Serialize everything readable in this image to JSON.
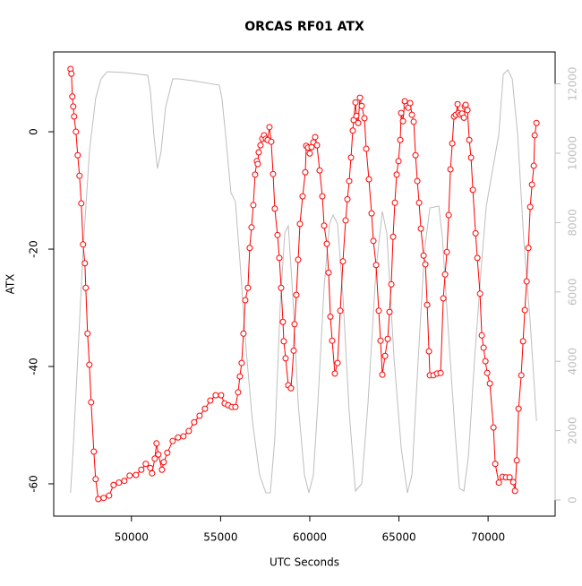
{
  "chart_data": {
    "type": "line",
    "title": "ORCAS RF01 ATX",
    "x_label": "UTC Seconds",
    "y_label": "ATX",
    "xlim": [
      45640,
      73760
    ],
    "ylim": [
      -65.5,
      13.6
    ],
    "y2lim": [
      -465,
      12920
    ],
    "xticks": [
      50000,
      55000,
      60000,
      65000,
      70000
    ],
    "yticks": [
      -60,
      -40,
      -20,
      0
    ],
    "y2ticks": [
      0,
      2000,
      4000,
      6000,
      8000,
      10000,
      12000
    ],
    "y2_color": "#bebebe",
    "series": [
      {
        "color": "#ff0000",
        "style": "points-lines",
        "axis": "y",
        "x": [
          46583,
          46633,
          46683,
          46734,
          46784,
          46884,
          46985,
          47086,
          47186,
          47286,
          47387,
          47437,
          47538,
          47638,
          47739,
          47890,
          47990,
          48141,
          48442,
          48744,
          48995,
          49296,
          49598,
          49899,
          50251,
          50553,
          50804,
          51055,
          51156,
          51307,
          51407,
          51508,
          51709,
          51809,
          52010,
          52312,
          52613,
          52915,
          53216,
          53518,
          53819,
          54121,
          54422,
          54724,
          55025,
          55226,
          55427,
          55628,
          55829,
          55980,
          56080,
          56181,
          56281,
          56382,
          56533,
          56633,
          56734,
          56834,
          56935,
          57035,
          57086,
          57136,
          57236,
          57337,
          57437,
          57538,
          57638,
          57739,
          57839,
          57940,
          58040,
          58191,
          58292,
          58392,
          58493,
          58543,
          58643,
          58794,
          58945,
          59096,
          59146,
          59246,
          59347,
          59447,
          59598,
          59749,
          59799,
          59900,
          60000,
          60101,
          60201,
          60302,
          60402,
          60553,
          60704,
          60804,
          60955,
          61055,
          61156,
          61256,
          61407,
          61558,
          61709,
          61859,
          62010,
          62111,
          62211,
          62312,
          62412,
          62462,
          62563,
          62613,
          62714,
          62814,
          62915,
          63065,
          63166,
          63317,
          63467,
          63568,
          63719,
          63869,
          63970,
          64070,
          64221,
          64372,
          64472,
          64573,
          64673,
          64774,
          64874,
          64975,
          65075,
          65126,
          65226,
          65327,
          65427,
          65528,
          65628,
          65729,
          65829,
          65930,
          66030,
          66131,
          66231,
          66382,
          66482,
          66583,
          66683,
          66734,
          66935,
          67136,
          67337,
          67487,
          67588,
          67688,
          67789,
          67889,
          67990,
          68090,
          68191,
          68291,
          68342,
          68442,
          68543,
          68643,
          68693,
          68744,
          68844,
          68945,
          69045,
          69146,
          69297,
          69397,
          69548,
          69648,
          69749,
          69849,
          69950,
          70101,
          70302,
          70402,
          70603,
          70804,
          71005,
          71206,
          71407,
          71508,
          71608,
          71709,
          71859,
          71960,
          72060,
          72161,
          72261,
          72362,
          72462,
          72563,
          72613,
          72714
        ],
        "values": [
          10.7,
          9.9,
          6.0,
          4.3,
          2.6,
          0,
          -4.0,
          -7.5,
          -12.2,
          -19.2,
          -22.4,
          -26.6,
          -34.4,
          -39.7,
          -46.1,
          -54.5,
          -59.2,
          -62.6,
          -62.4,
          -62.0,
          -60.2,
          -59.8,
          -59.5,
          -58.6,
          -58.5,
          -57.6,
          -56.6,
          -57.3,
          -58.2,
          -55.7,
          -53.1,
          -55.0,
          -57.6,
          -56.3,
          -54.7,
          -52.7,
          -52.1,
          -51.9,
          -51.0,
          -49.5,
          -48.4,
          -47.2,
          -45.8,
          -44.9,
          -44.9,
          -46.3,
          -46.6,
          -46.9,
          -46.9,
          -44.4,
          -41.7,
          -39.4,
          -34.4,
          -28.7,
          -26.6,
          -19.8,
          -16.3,
          -12.5,
          -7.3,
          -5.0,
          -5.5,
          -3.5,
          -2.3,
          -1.2,
          -0.6,
          -1.2,
          -1.4,
          0.8,
          -1.7,
          -7.2,
          -13.1,
          -17.6,
          -21.5,
          -26.6,
          -32.4,
          -35.7,
          -38.6,
          -43.2,
          -43.7,
          -37.3,
          -32.8,
          -27.8,
          -21.8,
          -15.7,
          -11.0,
          -6.9,
          -2.4,
          -2.7,
          -3.7,
          -2.6,
          -1.8,
          -0.9,
          -2.3,
          -6.6,
          -11.0,
          -16.0,
          -19.1,
          -24.0,
          -31.5,
          -35.6,
          -41.2,
          -39.4,
          -30.5,
          -22.1,
          -15.1,
          -11.5,
          -8.4,
          -4.4,
          0.2,
          2.0,
          5.0,
          2.7,
          1.5,
          5.8,
          4.4,
          2.3,
          -2.9,
          -8.1,
          -13.9,
          -18.6,
          -22.7,
          -30.5,
          -35.6,
          -41.4,
          -38.2,
          -35.3,
          -30.7,
          -26.0,
          -17.9,
          -12.1,
          -7.3,
          -5.0,
          -1.4,
          3.2,
          1.8,
          5.2,
          4.4,
          4.1,
          4.9,
          2.9,
          1.7,
          -4.0,
          -8.4,
          -12.1,
          -16.5,
          -21.1,
          -22.6,
          -29.5,
          -37.4,
          -41.5,
          -41.5,
          -41.2,
          -41.1,
          -28.4,
          -24.3,
          -20.5,
          -14.2,
          -6.4,
          -2.0,
          2.6,
          2.9,
          4.7,
          3.2,
          2.9,
          3.1,
          2.4,
          4.3,
          4.6,
          3.7,
          -1.4,
          -4.4,
          -9.9,
          -17.3,
          -21.5,
          -27.6,
          -34.7,
          -36.8,
          -39.1,
          -41.1,
          -42.9,
          -50.4,
          -56.6,
          -59.8,
          -58.8,
          -58.9,
          -58.9,
          -59.7,
          -61.2,
          -56.0,
          -47.2,
          -41.5,
          -35.7,
          -30.4,
          -25.5,
          -19.8,
          -12.8,
          -9.0,
          -5.8,
          -0.6,
          1.5
        ]
      },
      {
        "color": "#bebebe",
        "style": "line",
        "axis": "y2",
        "x": [
          46583,
          46734,
          46985,
          47286,
          47638,
          47990,
          48292,
          48643,
          49648,
          50905,
          51055,
          51256,
          51457,
          51658,
          51910,
          52312,
          52663,
          53417,
          54925,
          55075,
          55276,
          55578,
          55829,
          56080,
          56432,
          56784,
          57186,
          57538,
          57789,
          58040,
          58342,
          58593,
          58794,
          59045,
          59347,
          59698,
          59950,
          60201,
          60452,
          60804,
          61106,
          61307,
          61558,
          61859,
          62211,
          62563,
          62915,
          63266,
          63719,
          64070,
          64322,
          64724,
          65126,
          65477,
          65729,
          66080,
          66432,
          66734,
          67236,
          67437,
          67739,
          68141,
          68392,
          68643,
          68895,
          69246,
          69648,
          69899,
          70251,
          70603,
          70854,
          71105,
          71357,
          71658,
          72010,
          72362,
          72714
        ],
        "values": [
          207,
          1499,
          4083,
          7183,
          10026,
          11576,
          12145,
          12351,
          12326,
          12248,
          11835,
          10543,
          9561,
          10026,
          11318,
          12145,
          12145,
          12093,
          11964,
          11576,
          10543,
          8863,
          8605,
          6925,
          4341,
          2274,
          724,
          207,
          207,
          1757,
          5633,
          7700,
          7907,
          5891,
          2791,
          724,
          207,
          724,
          2791,
          6150,
          7959,
          8217,
          7959,
          5891,
          2532,
          258,
          465,
          2791,
          6667,
          8320,
          7700,
          4083,
          1499,
          207,
          724,
          4083,
          7183,
          8424,
          8475,
          7571,
          5116,
          2015,
          336,
          258,
          1240,
          4083,
          6925,
          8475,
          9509,
          10543,
          12274,
          12403,
          12145,
          10543,
          7442,
          5116,
          2274
        ]
      }
    ]
  }
}
